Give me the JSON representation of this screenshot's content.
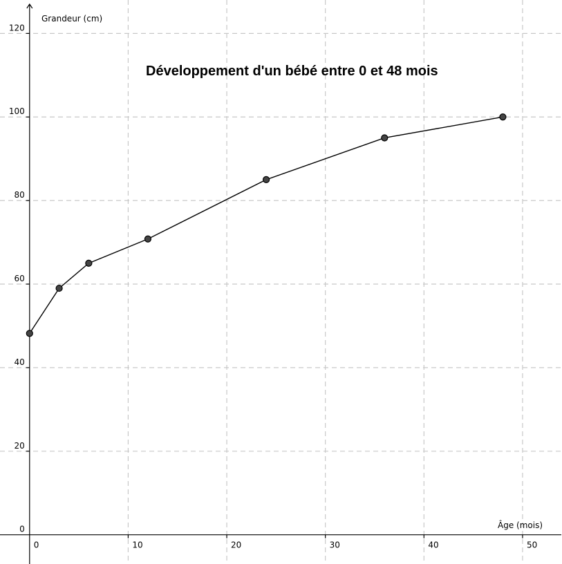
{
  "chart_data": {
    "type": "line",
    "title": "Développement d'un bébé entre 0 et 48 mois",
    "xlabel": "Âge (mois)",
    "ylabel": "Grandeur (cm)",
    "xlim": [
      -3,
      54
    ],
    "ylim": [
      -7,
      128
    ],
    "x_ticks": [
      0,
      10,
      20,
      30,
      40,
      50
    ],
    "y_ticks": [
      0,
      20,
      40,
      60,
      80,
      100,
      120
    ],
    "grid": true,
    "series": [
      {
        "x": [
          0,
          3,
          6,
          12,
          24,
          36,
          48
        ],
        "y": [
          48.2,
          59,
          65,
          70.8,
          85,
          95,
          100
        ]
      }
    ],
    "colors": {
      "grid": "#c8c8c8",
      "line": "#000000",
      "point": "#444444"
    }
  }
}
